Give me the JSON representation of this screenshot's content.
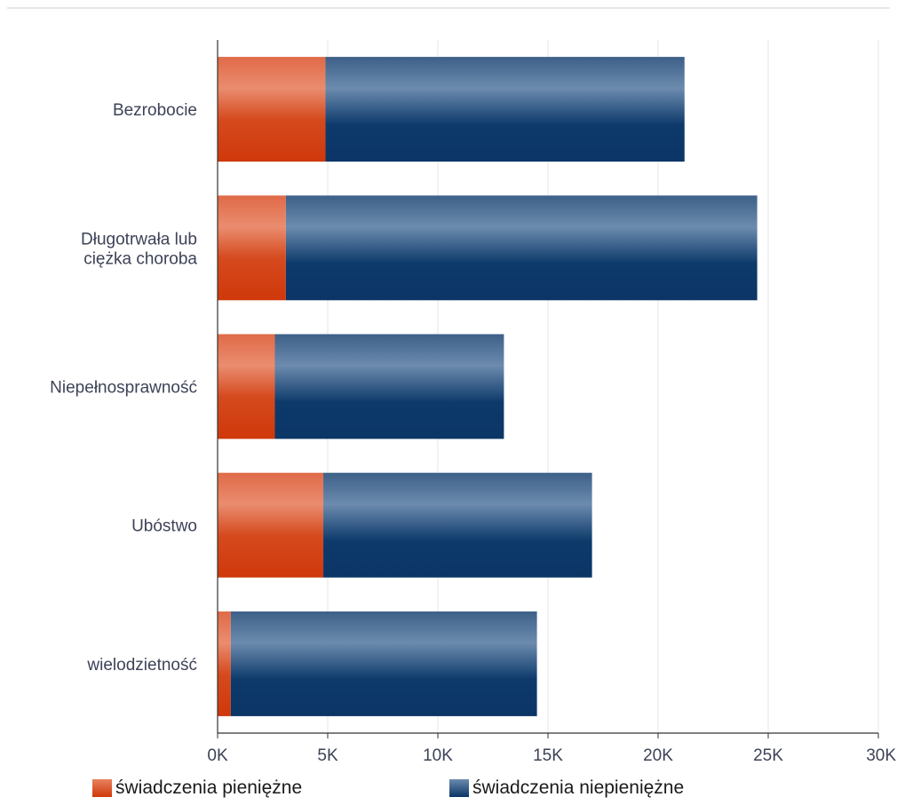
{
  "colors": {
    "series_0": "#d03e10",
    "series_1": "#0e3868",
    "grid": "#e6e6e6",
    "axis": "#333333",
    "text": "#3d4257"
  },
  "chart_data": {
    "type": "bar",
    "orientation": "horizontal",
    "stacked": true,
    "categories": [
      [
        "Bezrobocie"
      ],
      [
        "Długotrwała lub",
        "ciężka choroba"
      ],
      [
        "Niepełnosprawność"
      ],
      [
        "Ubóstwo"
      ],
      [
        "wielodzietność"
      ]
    ],
    "series": [
      {
        "name": "świadczenia pieniężne",
        "values": [
          4900,
          3100,
          2600,
          4800,
          600
        ]
      },
      {
        "name": "świadczenia niepieniężne",
        "values": [
          16300,
          21400,
          10400,
          12200,
          13900
        ]
      }
    ],
    "xlim": [
      0,
      30000
    ],
    "xticks": [
      "0K",
      "5K",
      "10K",
      "15K",
      "20K",
      "25K",
      "30K"
    ],
    "grid": true,
    "legend": "bottom"
  }
}
